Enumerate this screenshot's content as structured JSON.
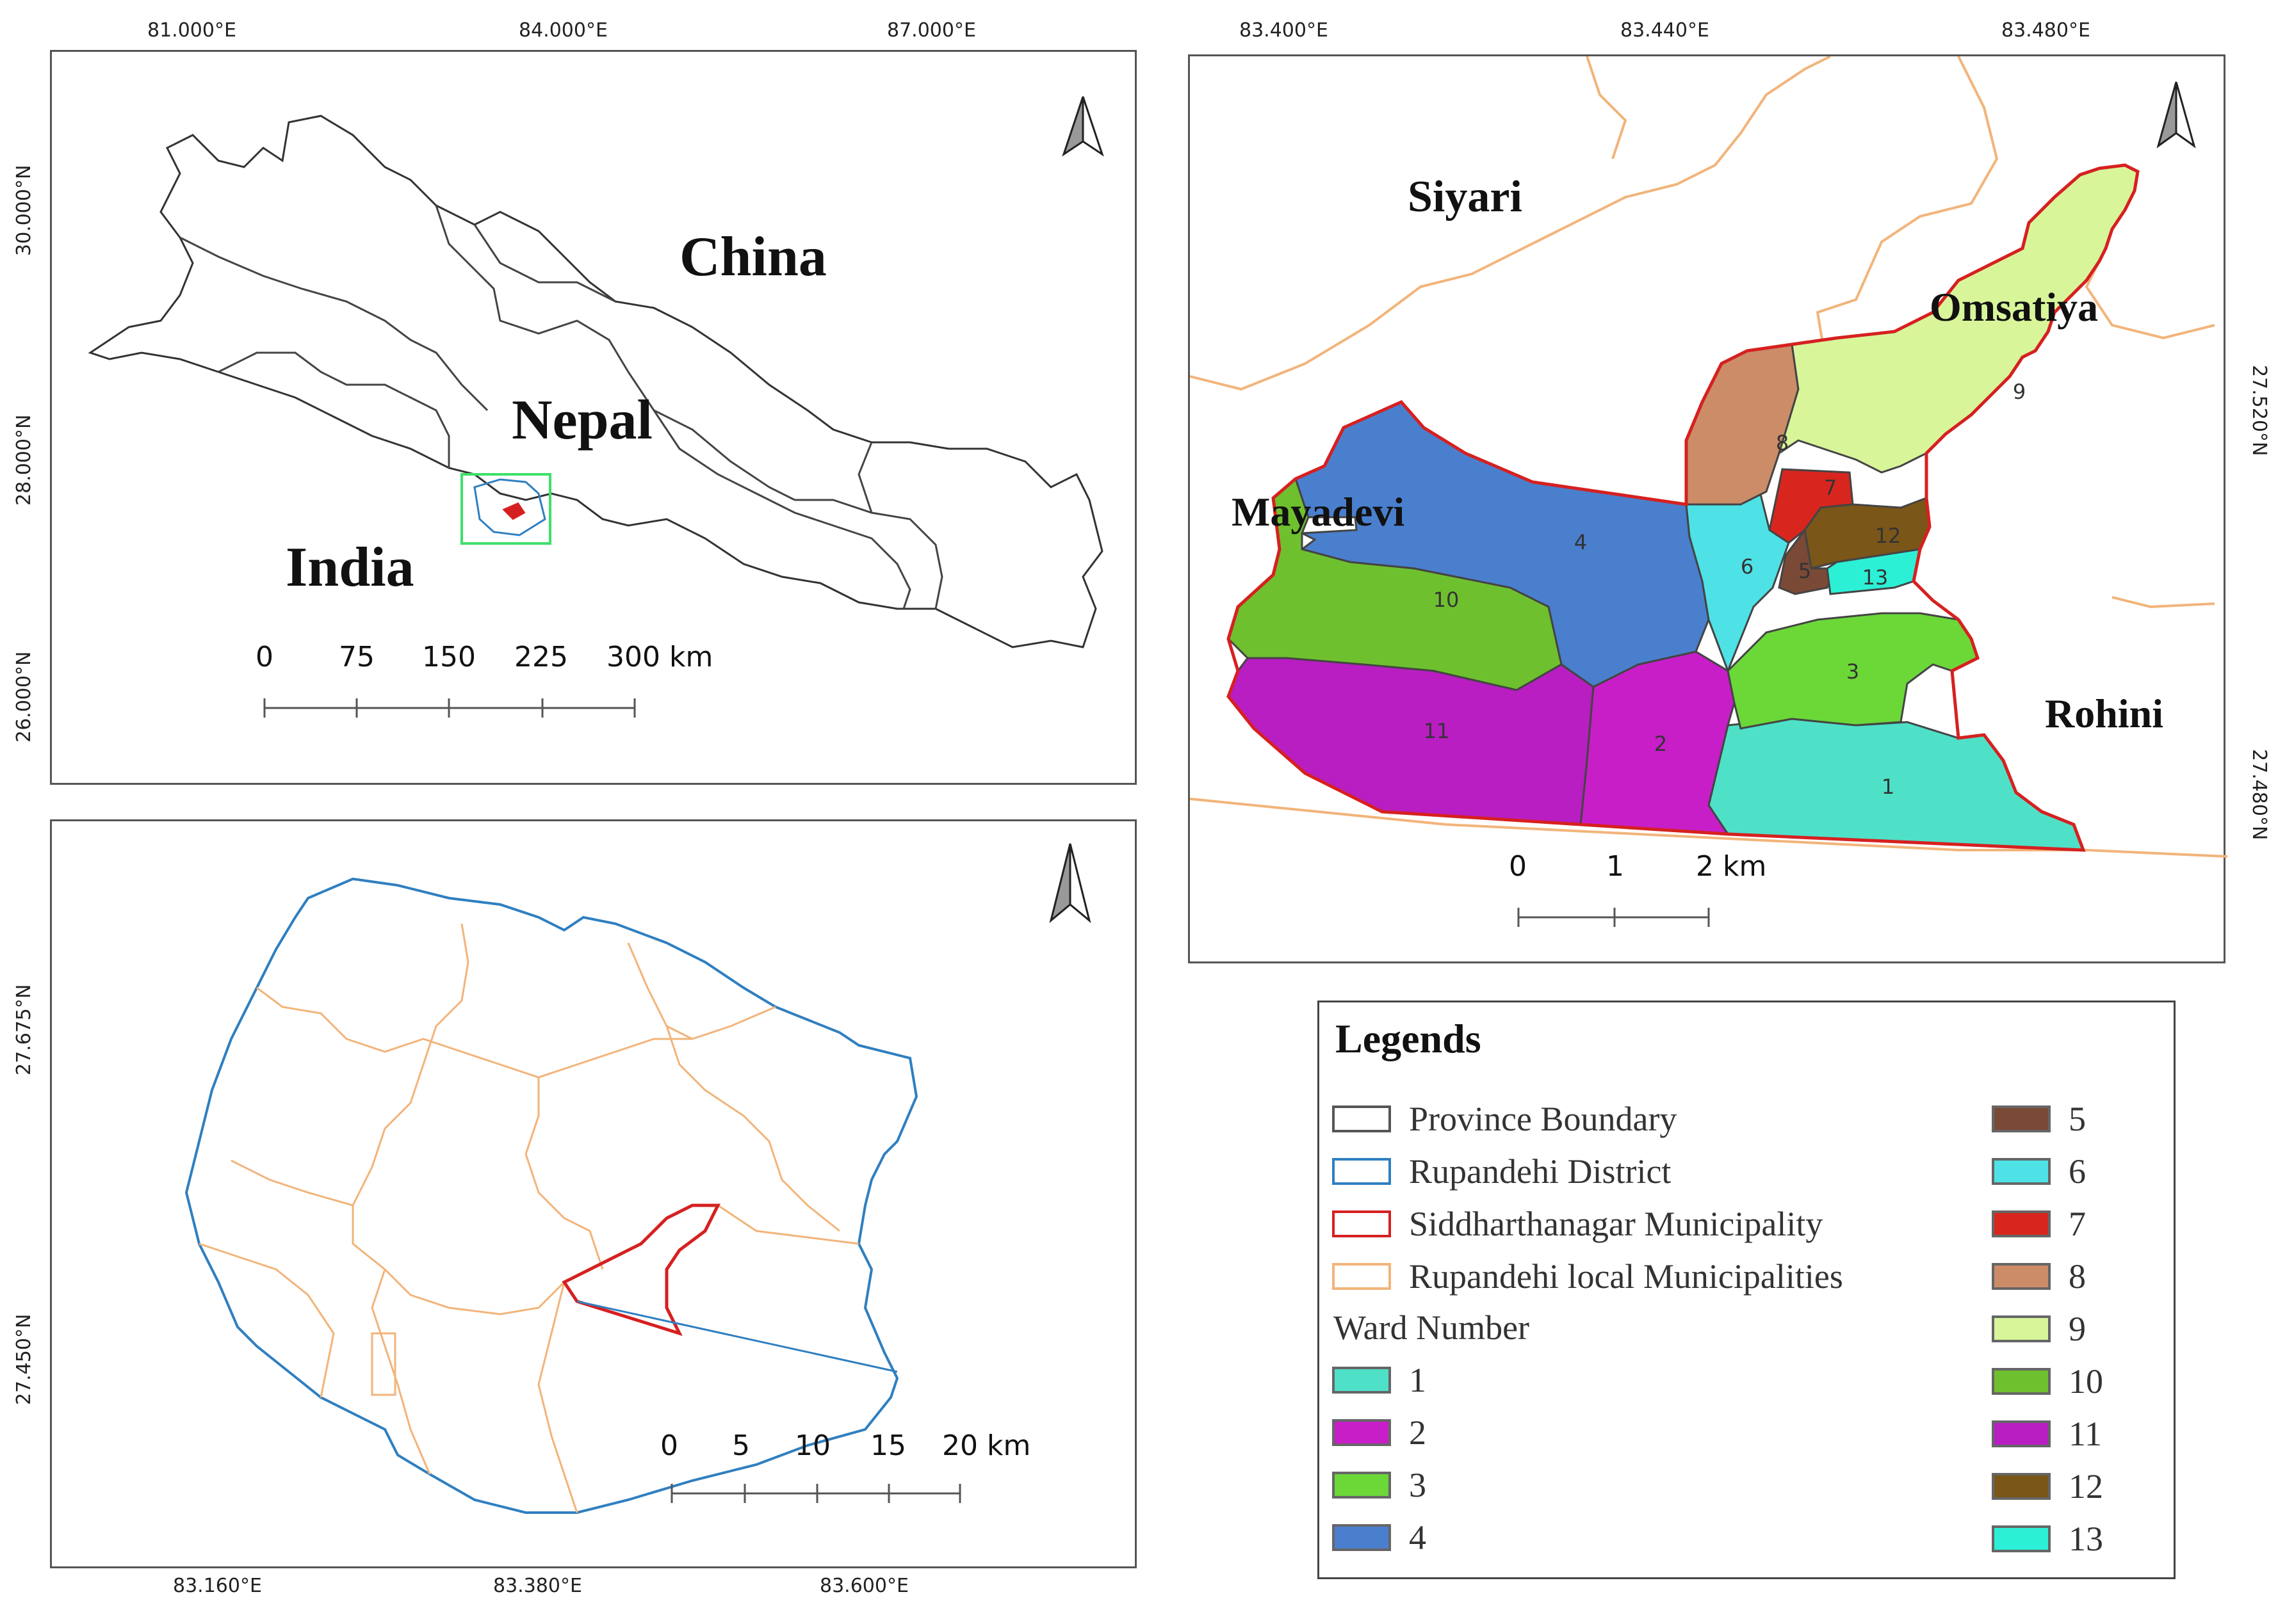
{
  "panel_nepal": {
    "lon_ticks": [
      "81.000°E",
      "84.000°E",
      "87.000°E"
    ],
    "lat_ticks": [
      "30.000°N",
      "28.000°N",
      "26.000°N"
    ],
    "labels": {
      "china": "China",
      "nepal": "Nepal",
      "india": "India"
    },
    "scale": [
      "0",
      "75",
      "150",
      "225",
      "300 km"
    ]
  },
  "panel_municipality": {
    "lon_ticks": [
      "83.400°E",
      "83.440°E",
      "83.480°E"
    ],
    "lat_ticks": [
      "27.520°N",
      "27.480°N"
    ],
    "labels": {
      "siyari": "Siyari",
      "omsatiya": "Omsatiya",
      "mayadevi": "Mayadevi",
      "rohini": "Rohini"
    },
    "wards": [
      "1",
      "2",
      "3",
      "4",
      "5",
      "6",
      "7",
      "8",
      "9",
      "10",
      "11",
      "12",
      "13"
    ],
    "scale": [
      "0",
      "1",
      "2 km"
    ]
  },
  "panel_district": {
    "lon_ticks": [
      "83.160°E",
      "83.380°E",
      "83.600°E"
    ],
    "lat_ticks": [
      "27.675°N",
      "27.450°N"
    ],
    "scale": [
      "0",
      "5",
      "10",
      "15",
      "20 km"
    ]
  },
  "legend": {
    "title": "Legends",
    "items": [
      {
        "label": "Province Boundary",
        "stroke": "#555555",
        "fill": "#ffffff"
      },
      {
        "label": "Rupandehi District",
        "stroke": "#2f7fc0",
        "fill": "#ffffff"
      },
      {
        "label": "Siddharthanagar Municipality",
        "stroke": "#d62020",
        "fill": "#ffffff"
      },
      {
        "label": "Rupandehi local Municipalities",
        "stroke": "#f2b47a",
        "fill": "#ffffff"
      }
    ],
    "ward_heading": "Ward Number",
    "wards": [
      {
        "label": "1",
        "color": "#4fe0c8"
      },
      {
        "label": "2",
        "color": "#c81ec8"
      },
      {
        "label": "3",
        "color": "#6bd838"
      },
      {
        "label": "4",
        "color": "#4a7fce"
      },
      {
        "label": "5",
        "color": "#7a4a36"
      },
      {
        "label": "6",
        "color": "#4ee2e6"
      },
      {
        "label": "7",
        "color": "#d8261e"
      },
      {
        "label": "8",
        "color": "#cc8c68"
      },
      {
        "label": "9",
        "color": "#d8f59a"
      },
      {
        "label": "10",
        "color": "#6fc02e"
      },
      {
        "label": "11",
        "color": "#b81ec2"
      },
      {
        "label": "12",
        "color": "#7a5618"
      },
      {
        "label": "13",
        "color": "#2cf0d6"
      }
    ]
  }
}
